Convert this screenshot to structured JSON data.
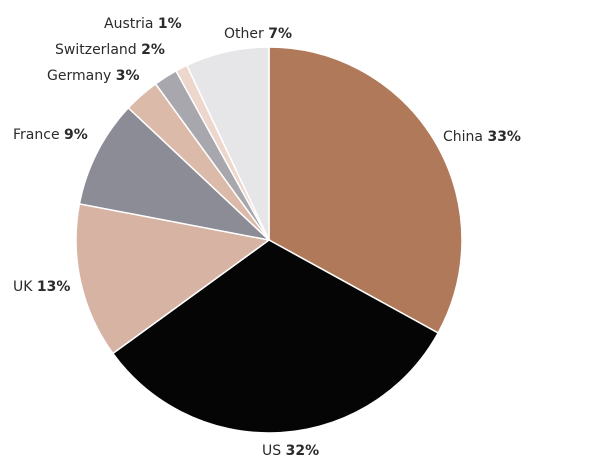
{
  "chart_data": {
    "type": "pie",
    "title": "",
    "categories": [
      "China",
      "US",
      "UK",
      "France",
      "Germany",
      "Switzerland",
      "Austria",
      "Other"
    ],
    "values": [
      33,
      32,
      13,
      9,
      3,
      2,
      1,
      7
    ],
    "value_labels": [
      "33%",
      "32%",
      "13%",
      "9%",
      "3%",
      "2%",
      "1%",
      "7%"
    ],
    "colors": [
      "#b07a5a",
      "#050505",
      "#d7b3a3",
      "#8c8c96",
      "#dcbaa9",
      "#a7a7ad",
      "#edd6cc",
      "#e6e6e8"
    ],
    "start": "12 o'clock",
    "direction": "clockwise",
    "legend": "none"
  }
}
